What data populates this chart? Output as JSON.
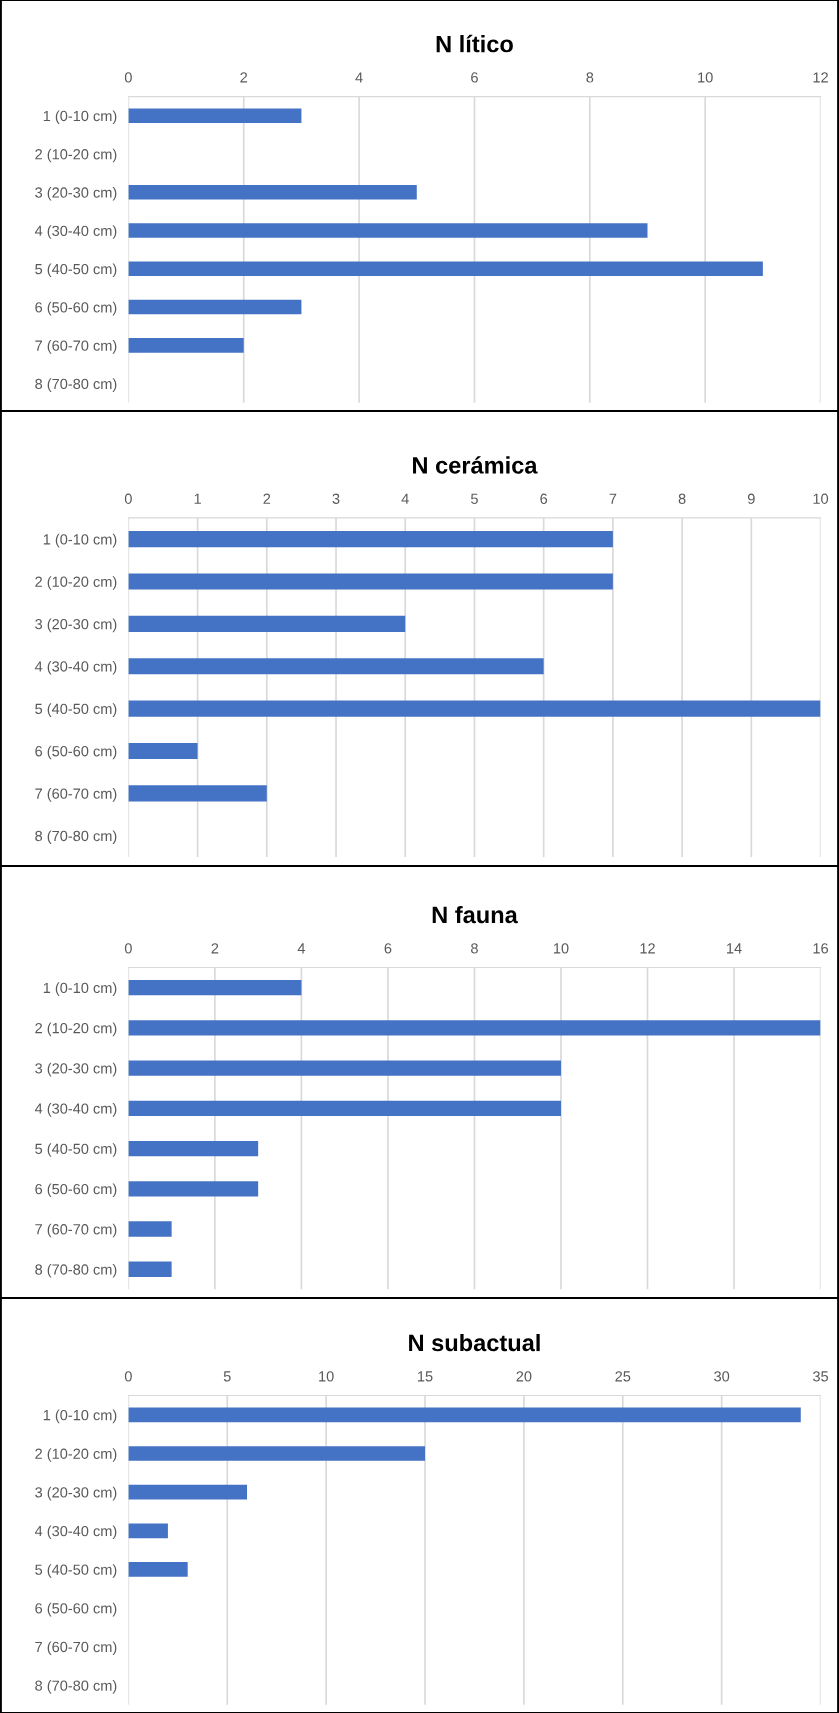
{
  "chart_data": [
    {
      "type": "bar",
      "orientation": "horizontal",
      "title": "N lítico",
      "categories": [
        "1 (0-10 cm)",
        "2 (10-20 cm)",
        "3 (20-30 cm)",
        "4 (30-40 cm)",
        "5 (40-50 cm)",
        "6 (50-60 cm)",
        "7 (60-70 cm)",
        "8 (70-80 cm)"
      ],
      "values": [
        3,
        0,
        5,
        9,
        11,
        3,
        2,
        0
      ],
      "color": "#4472c4",
      "xlim": [
        0,
        12
      ],
      "xticks": [
        0,
        2,
        4,
        6,
        8,
        10,
        12
      ],
      "grid": "x"
    },
    {
      "type": "bar",
      "orientation": "horizontal",
      "title": "N cerámica",
      "categories": [
        "1 (0-10 cm)",
        "2 (10-20 cm)",
        "3 (20-30 cm)",
        "4 (30-40 cm)",
        "5 (40-50 cm)",
        "6 (50-60 cm)",
        "7 (60-70 cm)",
        "8 (70-80 cm)"
      ],
      "values": [
        7,
        7,
        4,
        6,
        10,
        1,
        2,
        0
      ],
      "color": "#4472c4",
      "xlim": [
        0,
        10
      ],
      "xticks": [
        0,
        1,
        2,
        3,
        4,
        5,
        6,
        7,
        8,
        9,
        10
      ],
      "grid": "x"
    },
    {
      "type": "bar",
      "orientation": "horizontal",
      "title": "N fauna",
      "categories": [
        "1 (0-10 cm)",
        "2 (10-20 cm)",
        "3 (20-30 cm)",
        "4 (30-40 cm)",
        "5 (40-50 cm)",
        "6 (50-60 cm)",
        "7 (60-70 cm)",
        "8 (70-80 cm)"
      ],
      "values": [
        4,
        16,
        10,
        10,
        3,
        3,
        1,
        1
      ],
      "color": "#4472c4",
      "xlim": [
        0,
        16
      ],
      "xticks": [
        0,
        2,
        4,
        6,
        8,
        10,
        12,
        14,
        16
      ],
      "grid": "x"
    },
    {
      "type": "bar",
      "orientation": "horizontal",
      "title": "N subactual",
      "categories": [
        "1 (0-10 cm)",
        "2 (10-20 cm)",
        "3 (20-30 cm)",
        "4 (30-40 cm)",
        "5 (40-50 cm)",
        "6 (50-60 cm)",
        "7 (60-70 cm)",
        "8 (70-80 cm)"
      ],
      "values": [
        34,
        15,
        6,
        2,
        3,
        0,
        0,
        0
      ],
      "color": "#4472c4",
      "xlim": [
        0,
        35
      ],
      "xticks": [
        0,
        5,
        10,
        15,
        20,
        25,
        30,
        35
      ],
      "grid": "x"
    }
  ]
}
